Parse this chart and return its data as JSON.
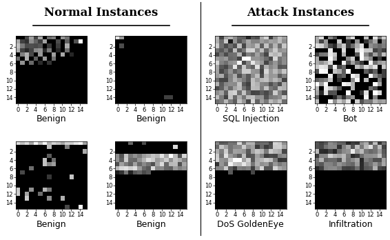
{
  "title_left": "Normal Instances",
  "title_right": "Attack Instances",
  "labels": [
    "Benign",
    "Benign",
    "SQL Injection",
    "Bot",
    "Benign",
    "Benign",
    "DoS GoldenEye",
    "Infiltration"
  ],
  "grid_size": 16,
  "xticks": [
    0,
    2,
    4,
    6,
    8,
    10,
    12,
    14
  ],
  "background": "#ffffff",
  "title_fontsize": 12,
  "label_fontsize": 9,
  "tick_fontsize": 6
}
